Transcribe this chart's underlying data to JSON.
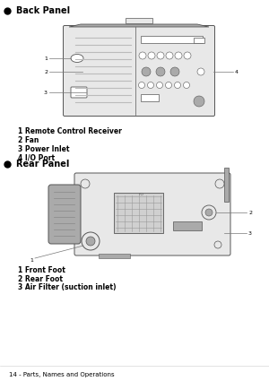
{
  "bg_color": "#ffffff",
  "text_color": "#000000",
  "title": "14 - Parts, Names and Operations",
  "back_panel_title": "Back Panel",
  "back_panel_items": [
    "1 Remote Control Receiver",
    "2 Fan",
    "3 Power Inlet",
    "4 I/O Port"
  ],
  "rear_panel_title": "Rear Panel",
  "rear_panel_items": [
    "1 Front Foot",
    "2 Rear Foot",
    "3 Air Filter (suction inlet)"
  ],
  "device_fill": "#e8e8e8",
  "device_dark": "#aaaaaa",
  "device_border": "#555555",
  "line_color": "#777777",
  "grille_color": "#bbbbbb"
}
